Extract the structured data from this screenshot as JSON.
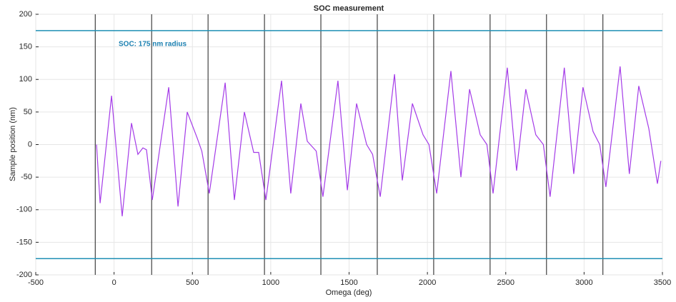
{
  "chart_data": {
    "type": "line",
    "title": "SOC measurement",
    "xlabel": "Omega (deg)",
    "ylabel": "Sample position (nm)",
    "annotation": "SOC: 175 nm radius",
    "xlim": [
      -500,
      3500
    ],
    "xticks": [
      -500,
      0,
      500,
      1000,
      1500,
      2000,
      2500,
      3000,
      3500
    ],
    "ylim": [
      -200,
      200
    ],
    "yticks": [
      -200,
      -150,
      -100,
      -50,
      0,
      50,
      100,
      150,
      200
    ],
    "grid": true,
    "hlines": [
      175,
      -175
    ],
    "hline_color": "#1f8fb4",
    "vlines": [
      -120,
      240,
      600,
      960,
      1320,
      1680,
      2040,
      2400,
      2760,
      3120
    ],
    "vline_color": "#404040",
    "series": [
      {
        "color": "#a43be8",
        "x": [
          -112,
          -89,
          -16,
          52,
          111,
          152,
          184,
          207,
          244,
          349,
          408,
          467,
          531,
          560,
          608,
          709,
          768,
          832,
          891,
          923,
          969,
          1069,
          1128,
          1192,
          1233,
          1290,
          1333,
          1429,
          1489,
          1548,
          1612,
          1650,
          1699,
          1790,
          1840,
          1904,
          1972,
          2010,
          2059,
          2150,
          2214,
          2269,
          2337,
          2380,
          2419,
          2510,
          2569,
          2628,
          2692,
          2740,
          2783,
          2874,
          2934,
          2993,
          3057,
          3100,
          3139,
          3230,
          3289,
          3349,
          3413,
          3468,
          3490
        ],
        "values": [
          0,
          -90,
          75,
          -110,
          33,
          -15,
          -5,
          -8,
          -85,
          88,
          -95,
          50,
          10,
          -10,
          -75,
          95,
          -85,
          50,
          -12,
          -12,
          -85,
          98,
          -75,
          63,
          5,
          -10,
          -80,
          98,
          -70,
          63,
          0,
          -15,
          -80,
          108,
          -55,
          63,
          15,
          0,
          -75,
          113,
          -50,
          85,
          15,
          0,
          -75,
          118,
          -40,
          85,
          15,
          0,
          -80,
          118,
          -45,
          88,
          20,
          0,
          -65,
          120,
          -45,
          90,
          25,
          -60,
          -25
        ]
      }
    ]
  }
}
